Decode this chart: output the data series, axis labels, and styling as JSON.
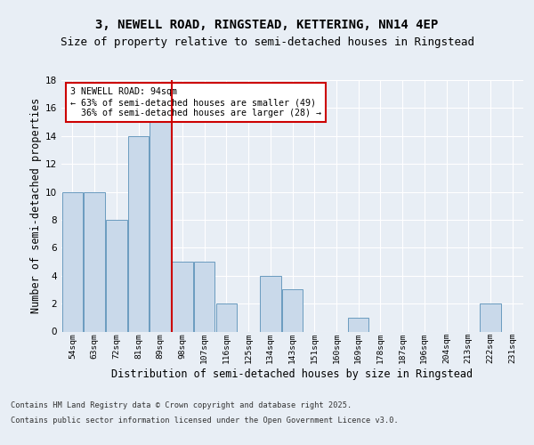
{
  "title1": "3, NEWELL ROAD, RINGSTEAD, KETTERING, NN14 4EP",
  "title2": "Size of property relative to semi-detached houses in Ringstead",
  "xlabel": "Distribution of semi-detached houses by size in Ringstead",
  "ylabel": "Number of semi-detached properties",
  "footer1": "Contains HM Land Registry data © Crown copyright and database right 2025.",
  "footer2": "Contains public sector information licensed under the Open Government Licence v3.0.",
  "bins": [
    "54sqm",
    "63sqm",
    "72sqm",
    "81sqm",
    "89sqm",
    "98sqm",
    "107sqm",
    "116sqm",
    "125sqm",
    "134sqm",
    "143sqm",
    "151sqm",
    "160sqm",
    "169sqm",
    "178sqm",
    "187sqm",
    "196sqm",
    "204sqm",
    "213sqm",
    "222sqm",
    "231sqm"
  ],
  "values": [
    10,
    10,
    8,
    14,
    15,
    5,
    5,
    2,
    0,
    4,
    3,
    0,
    0,
    1,
    0,
    0,
    0,
    0,
    0,
    2,
    0
  ],
  "bar_color": "#c9d9ea",
  "bar_edge_color": "#6a9bbf",
  "reference_line_x": 4.5,
  "annotation_text": "3 NEWELL ROAD: 94sqm\n← 63% of semi-detached houses are smaller (49)\n  36% of semi-detached houses are larger (28) →",
  "annotation_box_color": "#ffffff",
  "annotation_box_edge": "#cc0000",
  "ref_line_color": "#cc0000",
  "ylim": [
    0,
    18
  ],
  "yticks": [
    0,
    2,
    4,
    6,
    8,
    10,
    12,
    14,
    16,
    18
  ],
  "background_color": "#e8eef5",
  "plot_background": "#e8eef5",
  "grid_color": "#ffffff",
  "title1_fontsize": 10,
  "title2_fontsize": 9,
  "xlabel_fontsize": 8.5,
  "ylabel_fontsize": 8.5,
  "footer_fontsize": 6.2
}
